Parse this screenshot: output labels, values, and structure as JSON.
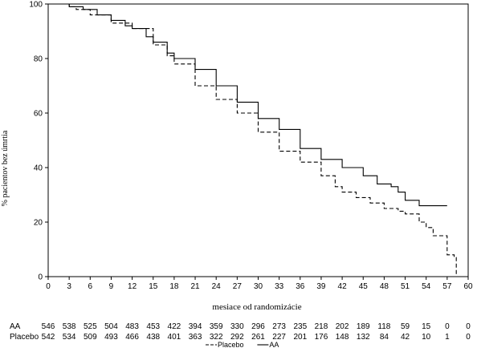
{
  "chart_data": {
    "type": "line",
    "title": "",
    "xlabel": "mesiace od randomizácie",
    "ylabel": "% pacientov bez úmrtia",
    "xlim": [
      0,
      60
    ],
    "ylim": [
      0,
      100
    ],
    "x_ticks": [
      0,
      3,
      6,
      9,
      12,
      15,
      18,
      21,
      24,
      27,
      30,
      33,
      36,
      39,
      42,
      45,
      48,
      51,
      54,
      57,
      60
    ],
    "y_ticks": [
      0,
      20,
      40,
      60,
      80,
      100
    ],
    "grid": false,
    "legend_position": "bottom",
    "series": [
      {
        "name": "AA",
        "style": "solid",
        "points": [
          [
            0,
            100
          ],
          [
            2,
            100
          ],
          [
            3,
            99
          ],
          [
            5,
            98
          ],
          [
            7,
            96
          ],
          [
            9,
            94
          ],
          [
            11,
            92
          ],
          [
            12,
            91
          ],
          [
            14,
            88
          ],
          [
            15,
            86
          ],
          [
            17,
            82
          ],
          [
            18,
            80
          ],
          [
            21,
            76
          ],
          [
            24,
            70
          ],
          [
            27,
            64
          ],
          [
            30,
            58
          ],
          [
            33,
            54
          ],
          [
            36,
            47
          ],
          [
            39,
            43
          ],
          [
            42,
            40
          ],
          [
            45,
            37
          ],
          [
            47,
            34
          ],
          [
            49,
            33
          ],
          [
            50,
            31
          ],
          [
            51,
            28
          ],
          [
            53,
            26
          ],
          [
            57,
            26
          ]
        ]
      },
      {
        "name": "Placebo",
        "style": "dashed",
        "points": [
          [
            0,
            100
          ],
          [
            3,
            99
          ],
          [
            4,
            98
          ],
          [
            6,
            96
          ],
          [
            9,
            93
          ],
          [
            12,
            91
          ],
          [
            15,
            85
          ],
          [
            17,
            81
          ],
          [
            18,
            78
          ],
          [
            21,
            70
          ],
          [
            24,
            65
          ],
          [
            27,
            60
          ],
          [
            30,
            53
          ],
          [
            33,
            46
          ],
          [
            36,
            42
          ],
          [
            39,
            37
          ],
          [
            41,
            33
          ],
          [
            42,
            31
          ],
          [
            44,
            29
          ],
          [
            46,
            27
          ],
          [
            48,
            25
          ],
          [
            50,
            24
          ],
          [
            51,
            23
          ],
          [
            53,
            23
          ],
          [
            53,
            20
          ],
          [
            54,
            18
          ],
          [
            55,
            15
          ],
          [
            56,
            15
          ],
          [
            57,
            8
          ],
          [
            58,
            8
          ],
          [
            58,
            7
          ],
          [
            58.3,
            0
          ]
        ]
      }
    ],
    "risk_table": {
      "rows": [
        {
          "label": "AA",
          "values": [
            "546",
            "538",
            "525",
            "504",
            "483",
            "453",
            "422",
            "394",
            "359",
            "330",
            "296",
            "273",
            "235",
            "218",
            "202",
            "189",
            "118",
            "59",
            "15",
            "0",
            "0"
          ]
        },
        {
          "label": "Placebo",
          "values": [
            "542",
            "534",
            "509",
            "493",
            "466",
            "438",
            "401",
            "363",
            "322",
            "292",
            "261",
            "227",
            "201",
            "176",
            "148",
            "132",
            "84",
            "42",
            "10",
            "1",
            "0"
          ]
        }
      ]
    },
    "legend": [
      {
        "label": "Placebo",
        "style": "dashed"
      },
      {
        "label": "AA",
        "style": "solid"
      }
    ]
  }
}
